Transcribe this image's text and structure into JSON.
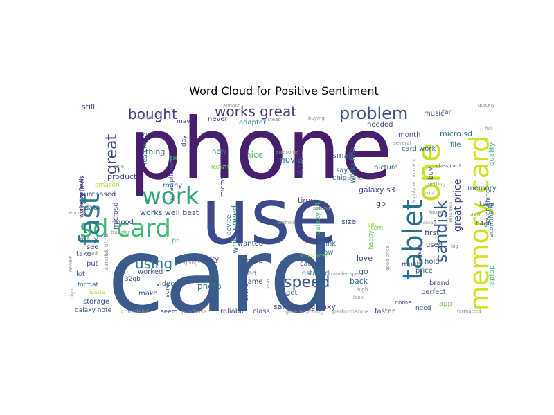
{
  "title": "Word Cloud for Positive Sentiment",
  "words": [
    {
      "text": "phone",
      "color": "#46206d"
    },
    {
      "text": "card",
      "color": "#3b5b8c"
    },
    {
      "text": "use",
      "color": "#3a4a8a"
    },
    {
      "text": "sd card",
      "color": "#3fbc72"
    },
    {
      "text": "work",
      "color": "#34a37d"
    },
    {
      "text": "memory card",
      "color": "#cfe11f"
    },
    {
      "text": "fast",
      "color": "#2a7b8e"
    },
    {
      "text": "one",
      "color": "#c8e020"
    },
    {
      "text": "tablet",
      "color": "#2b6f8d"
    },
    {
      "text": "problem",
      "color": "#3b5189"
    },
    {
      "text": "works great",
      "color": "#433d80"
    },
    {
      "text": "sandisk",
      "color": "#34598b"
    },
    {
      "text": "bought",
      "color": "#433e85"
    },
    {
      "text": "great",
      "color": "#3e4d89"
    },
    {
      "text": "speed",
      "color": "#3a5e8c"
    },
    {
      "text": "using",
      "color": "#2a788e"
    },
    {
      "text": "great price",
      "color": "#3d4a89"
    },
    {
      "text": "excellent",
      "color": "#2f6c8e"
    },
    {
      "text": "microsd",
      "color": "#3b528b"
    },
    {
      "text": "galaxy s4",
      "color": "#45bf70"
    },
    {
      "text": "samsung galaxy",
      "color": "#3e4a89"
    },
    {
      "text": "works well best",
      "color": "#3b528b"
    },
    {
      "text": "smartphone",
      "color": "#3b528b"
    },
    {
      "text": "micro sd",
      "color": "#2c728e"
    },
    {
      "text": "galaxy s3",
      "color": "#3f4889"
    },
    {
      "text": "still",
      "color": "#414487"
    },
    {
      "text": "quality",
      "color": "#35b779"
    },
    {
      "text": "memory",
      "color": "#31688e"
    },
    {
      "text": "recommend",
      "color": "#26828e"
    },
    {
      "text": "laptop",
      "color": "#3fbc73"
    },
    {
      "text": "read write",
      "color": "#3b528b"
    },
    {
      "text": "works perfectly",
      "color": "#440154"
    },
    {
      "text": "amazon",
      "color": "#b5de2b"
    },
    {
      "text": "product",
      "color": "#3b528b"
    },
    {
      "text": "purchased",
      "color": "#3f4889"
    },
    {
      "text": "data",
      "color": "#30688e"
    },
    {
      "text": "pc",
      "color": "#35b779"
    },
    {
      "text": "thing",
      "color": "#31688e"
    },
    {
      "text": "many",
      "color": "#2a788e"
    },
    {
      "text": "day",
      "color": "#3e4989"
    },
    {
      "text": "may",
      "color": "#46327e"
    },
    {
      "text": "never",
      "color": "#3f4889"
    },
    {
      "text": "new",
      "color": "#2a788e"
    },
    {
      "text": "want",
      "color": "#7ad151"
    },
    {
      "text": "nice",
      "color": "#4ac16d"
    },
    {
      "text": "adapter",
      "color": "#26828e"
    },
    {
      "text": "microsd card",
      "color": "#482878"
    },
    {
      "text": "movie",
      "color": "#2a788e"
    },
    {
      "text": "little",
      "color": "#433e85"
    },
    {
      "text": "small",
      "color": "#31688e"
    },
    {
      "text": "works fine",
      "color": "#2a788e"
    },
    {
      "text": "picture",
      "color": "#3b528b"
    },
    {
      "text": "needed",
      "color": "#3e4989"
    },
    {
      "text": "month",
      "color": "#3b528b"
    },
    {
      "text": "card work",
      "color": "#31688e"
    },
    {
      "text": "music",
      "color": "#3b528b"
    },
    {
      "text": "far",
      "color": "#3e4989"
    },
    {
      "text": "file",
      "color": "#2a788e"
    },
    {
      "text": "class card",
      "color": "#3b528b"
    },
    {
      "text": "everything",
      "color": "#3b528b"
    },
    {
      "text": "device",
      "color": "#26828e"
    },
    {
      "text": "write speed",
      "color": "#2a788e"
    },
    {
      "text": "chip",
      "color": "#31688e"
    },
    {
      "text": "say",
      "color": "#2a788e"
    },
    {
      "text": "time",
      "color": "#3e4989"
    },
    {
      "text": "gb",
      "color": "#414487"
    },
    {
      "text": "size",
      "color": "#3b528b"
    },
    {
      "text": "64gb",
      "color": "#31688e"
    },
    {
      "text": "first",
      "color": "#3e4989"
    },
    {
      "text": "keep",
      "color": "#31688e"
    },
    {
      "text": "used",
      "color": "#3b528b"
    },
    {
      "text": "hold",
      "color": "#3b528b"
    },
    {
      "text": "alway",
      "color": "#46327e"
    },
    {
      "text": "price",
      "color": "#3b528b"
    },
    {
      "text": "good",
      "color": "#3b528b"
    },
    {
      "text": "really",
      "color": "#3b528b"
    },
    {
      "text": "fit",
      "color": "#35b779"
    },
    {
      "text": "wanted",
      "color": "#3b528b"
    },
    {
      "text": "think",
      "color": "#31688e"
    },
    {
      "text": "capacity",
      "color": "#414487"
    },
    {
      "text": "space",
      "color": "#3b528b"
    },
    {
      "text": "know",
      "color": "#2a788e"
    },
    {
      "text": "love",
      "color": "#3e4989"
    },
    {
      "text": "go",
      "color": "#31688e"
    },
    {
      "text": "camera",
      "color": "#3b528b"
    },
    {
      "text": "installed",
      "color": "#2a788e"
    },
    {
      "text": "computer",
      "color": "#b5de2b"
    },
    {
      "text": "back",
      "color": "#31688e"
    },
    {
      "text": "perfect",
      "color": "#3b528b"
    },
    {
      "text": "brand",
      "color": "#3b528b"
    },
    {
      "text": "app",
      "color": "#6ece58"
    },
    {
      "text": "take",
      "color": "#3b528b"
    },
    {
      "text": "see",
      "color": "#3b528b"
    },
    {
      "text": "put",
      "color": "#3b528b"
    },
    {
      "text": "lot",
      "color": "#3e4989"
    },
    {
      "text": "format",
      "color": "#2a788e"
    },
    {
      "text": "issue",
      "color": "#b5de2b"
    },
    {
      "text": "32gb",
      "color": "#3b528b"
    },
    {
      "text": "video",
      "color": "#2a788e"
    },
    {
      "text": "photo",
      "color": "#2a788e"
    },
    {
      "text": "worked",
      "color": "#3b528b"
    },
    {
      "text": "make",
      "color": "#3b528b"
    },
    {
      "text": "sure",
      "color": "#3b528b"
    },
    {
      "text": "storage",
      "color": "#3b528b"
    },
    {
      "text": "galaxy note",
      "color": "#3b528b"
    },
    {
      "text": "seem",
      "color": "#3b528b"
    },
    {
      "text": "reliable",
      "color": "#3b528b"
    },
    {
      "text": "class",
      "color": "#3b528b"
    },
    {
      "text": "read",
      "color": "#3b528b"
    },
    {
      "text": "store",
      "color": "#3b528b"
    },
    {
      "text": "come",
      "color": "#3b528b"
    },
    {
      "text": "need",
      "color": "#3b528b"
    },
    {
      "text": "faster",
      "color": "#3b528b"
    },
    {
      "text": "got",
      "color": "#3b528b"
    },
    {
      "text": "item",
      "color": "#6ece58"
    },
    {
      "text": "happy",
      "color": "#6ece58"
    },
    {
      "text": "buy",
      "color": "#3b528b"
    },
    {
      "text": "much",
      "color": "#3b528b"
    },
    {
      "text": "yet",
      "color": "#b5de2b"
    },
    {
      "text": "came",
      "color": "#3b528b"
    },
    {
      "text": "purchase",
      "color": "#8e8e8e"
    },
    {
      "text": "complaint",
      "color": "#8e8e8e"
    },
    {
      "text": "give",
      "color": "#8e8e8e"
    },
    {
      "text": "anything",
      "color": "#8e8e8e"
    },
    {
      "text": "performance",
      "color": "#8e8e8e"
    },
    {
      "text": "able",
      "color": "#8e8e8e"
    },
    {
      "text": "getting",
      "color": "#8e8e8e"
    },
    {
      "text": "enough",
      "color": "#8e8e8e"
    },
    {
      "text": "review",
      "color": "#8e8e8e"
    },
    {
      "text": "right",
      "color": "#8e8e8e"
    },
    {
      "text": "sandisk ultra",
      "color": "#8e8e8e"
    },
    {
      "text": "android",
      "color": "#8e8e8e"
    },
    {
      "text": "transfer",
      "color": "#8e8e8e"
    },
    {
      "text": "transfer speed",
      "color": "#8e8e8e"
    },
    {
      "text": "good price",
      "color": "#8e8e8e"
    },
    {
      "text": "highly recommend",
      "color": "#8e8e8e"
    },
    {
      "text": "cheap",
      "color": "#8e8e8e"
    },
    {
      "text": "high",
      "color": "#8e8e8e"
    },
    {
      "text": "full",
      "color": "#8e8e8e"
    },
    {
      "text": "quickly",
      "color": "#8e8e8e"
    },
    {
      "text": "buying",
      "color": "#8e8e8e"
    },
    {
      "text": "around",
      "color": "#8e8e8e"
    },
    {
      "text": "almost",
      "color": "#8e8e8e"
    },
    {
      "text": "awesome",
      "color": "#8e8e8e"
    },
    {
      "text": "formatted",
      "color": "#8e8e8e"
    },
    {
      "text": "found",
      "color": "#8e8e8e"
    },
    {
      "text": "thank",
      "color": "#8e8e8e"
    },
    {
      "text": "better",
      "color": "#8e8e8e"
    },
    {
      "text": "several",
      "color": "#8e8e8e"
    },
    {
      "text": "cell phone",
      "color": "#8e8e8e"
    },
    {
      "text": "instead",
      "color": "#8e8e8e"
    },
    {
      "text": "big",
      "color": "#8e8e8e"
    },
    {
      "text": "run",
      "color": "#8e8e8e"
    },
    {
      "text": "stuff",
      "color": "#8e8e8e"
    },
    {
      "text": "going",
      "color": "#8e8e8e"
    },
    {
      "text": "year",
      "color": "#8e8e8e"
    },
    {
      "text": "look",
      "color": "#8e8e8e"
    },
    {
      "text": "windows",
      "color": "#8e8e8e"
    }
  ]
}
